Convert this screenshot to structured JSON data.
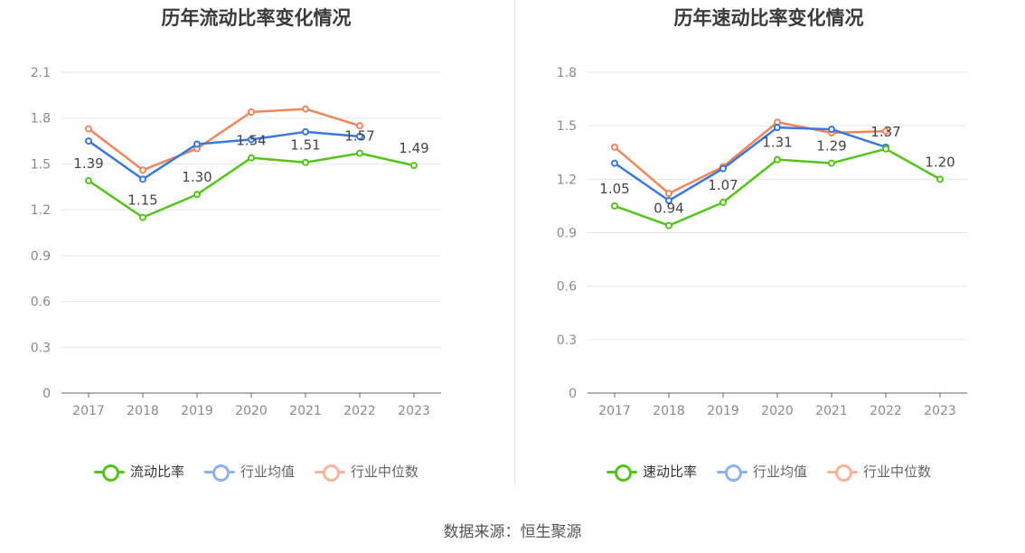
{
  "source": "数据来源：恒生聚源",
  "chart_data": [
    {
      "type": "line",
      "title": "历年流动比率变化情况",
      "categories": [
        "2017",
        "2018",
        "2019",
        "2020",
        "2021",
        "2022",
        "2023"
      ],
      "ylim": [
        0,
        2.1
      ],
      "yticks": [
        "0",
        "0.3",
        "0.6",
        "0.9",
        "1.2",
        "1.5",
        "1.8",
        "2.1"
      ],
      "grid": true,
      "legend_position": "bottom",
      "series": [
        {
          "name": "流动比率",
          "color": "#52c41a",
          "values": [
            1.39,
            1.15,
            1.3,
            1.54,
            1.51,
            1.57,
            1.49
          ],
          "labels": [
            "1.39",
            "1.15",
            "1.30",
            "1.54",
            "1.51",
            "1.57",
            "1.49"
          ]
        },
        {
          "name": "行业均值",
          "color": "#3a78e0",
          "values": [
            1.65,
            1.4,
            1.63,
            1.66,
            1.71,
            1.68,
            null
          ]
        },
        {
          "name": "行业中位数",
          "color": "#f0855a",
          "values": [
            1.73,
            1.46,
            1.6,
            1.84,
            1.86,
            1.75,
            null
          ]
        }
      ]
    },
    {
      "type": "line",
      "title": "历年速动比率变化情况",
      "categories": [
        "2017",
        "2018",
        "2019",
        "2020",
        "2021",
        "2022",
        "2023"
      ],
      "ylim": [
        0,
        1.8
      ],
      "yticks": [
        "0",
        "0.3",
        "0.6",
        "0.9",
        "1.2",
        "1.5",
        "1.8"
      ],
      "grid": true,
      "legend_position": "bottom",
      "series": [
        {
          "name": "速动比率",
          "color": "#52c41a",
          "values": [
            1.05,
            0.94,
            1.07,
            1.31,
            1.29,
            1.37,
            1.2
          ],
          "labels": [
            "1.05",
            "0.94",
            "1.07",
            "1.31",
            "1.29",
            "1.37",
            "1.20"
          ]
        },
        {
          "name": "行业均值",
          "color": "#3a78e0",
          "values": [
            1.29,
            1.08,
            1.26,
            1.49,
            1.48,
            1.38,
            null
          ]
        },
        {
          "name": "行业中位数",
          "color": "#f0855a",
          "values": [
            1.38,
            1.12,
            1.27,
            1.52,
            1.46,
            1.47,
            null
          ]
        }
      ]
    }
  ]
}
